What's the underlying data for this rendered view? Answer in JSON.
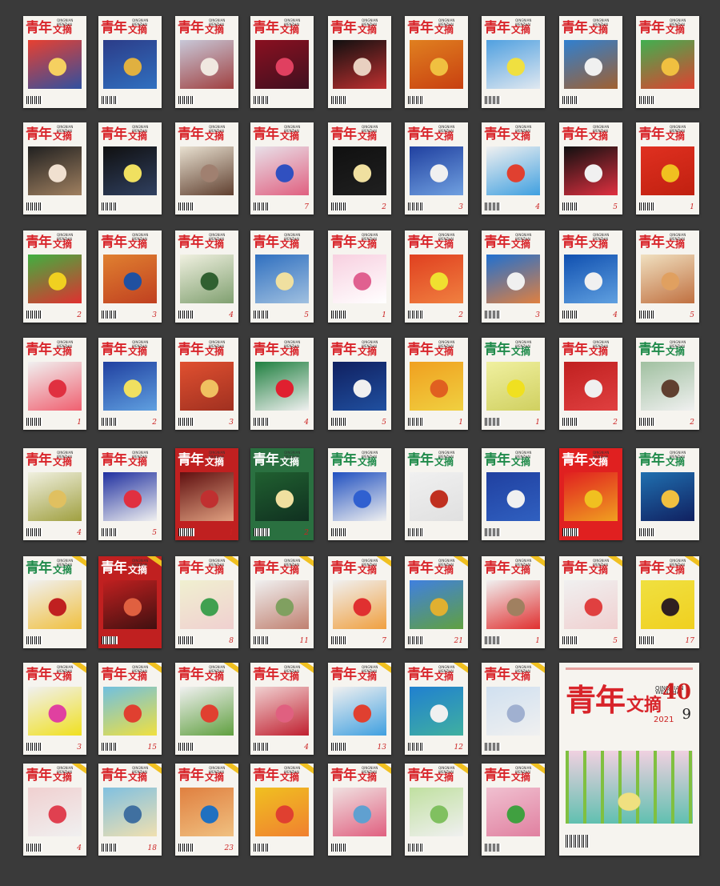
{
  "title_main": "青年",
  "title_sub": "文摘",
  "pinyin": "QINGNIAN WENZHAI",
  "colors": {
    "background": "#3a3a3a",
    "masthead_red": "#d8242a",
    "masthead_green": "#1f8a4a"
  },
  "covers": [
    {
      "label": "",
      "mast": "red",
      "art": [
        "#e84030",
        "#f5d060",
        "#3050a0"
      ]
    },
    {
      "label": "",
      "mast": "red",
      "art": [
        "#2c3c88",
        "#e0b040",
        "#3070c0"
      ]
    },
    {
      "label": "",
      "mast": "red",
      "art": [
        "#c8c8d8",
        "#f0e8e0",
        "#a04040"
      ]
    },
    {
      "label": "",
      "mast": "red",
      "art": [
        "#8a1020",
        "#e04060",
        "#401020"
      ]
    },
    {
      "label": "",
      "mast": "red",
      "art": [
        "#101010",
        "#e8d0c0",
        "#c03030"
      ]
    },
    {
      "label": "",
      "mast": "red",
      "art": [
        "#e08020",
        "#f0c040",
        "#c84010"
      ]
    },
    {
      "label": "",
      "mast": "red",
      "art": [
        "#50a0e0",
        "#f0e040",
        "#e0e8f0"
      ]
    },
    {
      "label": "",
      "mast": "red",
      "art": [
        "#3080d0",
        "#f0f0f0",
        "#a06030"
      ]
    },
    {
      "label": "",
      "mast": "red",
      "art": [
        "#40b050",
        "#f0c040",
        "#e04030"
      ]
    },
    {
      "label": "",
      "mast": "red",
      "art": [
        "#202020",
        "#f0e0d0",
        "#a08060"
      ]
    },
    {
      "label": "",
      "mast": "red",
      "art": [
        "#101010",
        "#f0e060",
        "#304060"
      ]
    },
    {
      "label": "",
      "mast": "red",
      "art": [
        "#e8e0d0",
        "#a08070",
        "#604030"
      ]
    },
    {
      "label": "7",
      "mast": "red",
      "art": [
        "#e8e0e8",
        "#3050c0",
        "#e06080"
      ]
    },
    {
      "label": "2",
      "mast": "red",
      "art": [
        "#101010",
        "#f0e0a0",
        "#202020"
      ]
    },
    {
      "label": "3",
      "mast": "red",
      "art": [
        "#2040a0",
        "#f0f0f0",
        "#70a0e0"
      ]
    },
    {
      "label": "4",
      "mast": "red",
      "art": [
        "#f0f0f0",
        "#e04030",
        "#40a0e0"
      ]
    },
    {
      "label": "5",
      "mast": "red",
      "art": [
        "#101010",
        "#f0f0f0",
        "#e03040"
      ]
    },
    {
      "label": "1",
      "mast": "red",
      "art": [
        "#e03020",
        "#f0c020",
        "#c02010"
      ]
    },
    {
      "label": "2",
      "mast": "red",
      "art": [
        "#40b040",
        "#f0d020",
        "#e03030"
      ]
    },
    {
      "label": "3",
      "mast": "red",
      "art": [
        "#e08030",
        "#2050a0",
        "#c04020"
      ]
    },
    {
      "label": "4",
      "mast": "red",
      "art": [
        "#f0f0e0",
        "#306030",
        "#80a070"
      ]
    },
    {
      "label": "5",
      "mast": "red",
      "art": [
        "#3070c0",
        "#f0e0a0",
        "#a0c0e0"
      ]
    },
    {
      "label": "1",
      "mast": "red",
      "art": [
        "#f8d0e0",
        "#e06090",
        "#ffffff"
      ]
    },
    {
      "label": "2",
      "mast": "red",
      "art": [
        "#e04020",
        "#f0e030",
        "#f08040"
      ]
    },
    {
      "label": "3",
      "mast": "red",
      "art": [
        "#2070d0",
        "#f0f0f0",
        "#e08040"
      ]
    },
    {
      "label": "4",
      "mast": "red",
      "art": [
        "#1050b0",
        "#f0f0f0",
        "#60a0e0"
      ]
    },
    {
      "label": "5",
      "mast": "red",
      "art": [
        "#f0e0c0",
        "#e0a060",
        "#c07040"
      ]
    },
    {
      "label": "1",
      "mast": "red",
      "art": [
        "#f0f0f0",
        "#e03040",
        "#f06070"
      ]
    },
    {
      "label": "2",
      "mast": "red",
      "art": [
        "#2040a0",
        "#f0e060",
        "#60a0e0"
      ]
    },
    {
      "label": "3",
      "mast": "red",
      "art": [
        "#e05030",
        "#f0c060",
        "#a03020"
      ]
    },
    {
      "label": "4",
      "mast": "red",
      "art": [
        "#208040",
        "#e02030",
        "#f0f0f0"
      ]
    },
    {
      "label": "5",
      "mast": "red",
      "art": [
        "#102060",
        "#f0f0f0",
        "#2050a0"
      ]
    },
    {
      "label": "1",
      "mast": "red",
      "art": [
        "#f0a020",
        "#e06020",
        "#f0d040"
      ]
    },
    {
      "label": "1",
      "mast": "green",
      "art": [
        "#f0f0a0",
        "#f0e020",
        "#d0d060"
      ]
    },
    {
      "label": "2",
      "mast": "red",
      "art": [
        "#c02020",
        "#f0f0f0",
        "#e04040"
      ]
    },
    {
      "label": "2",
      "mast": "green",
      "art": [
        "#a0c0a0",
        "#604030",
        "#f0f0f0"
      ]
    },
    {
      "label": "4",
      "mast": "red",
      "art": [
        "#f0f0e0",
        "#e0c060",
        "#a0a040"
      ]
    },
    {
      "label": "5",
      "mast": "red",
      "art": [
        "#2030a0",
        "#e03040",
        "#f0f0f0"
      ]
    },
    {
      "label": "1",
      "mast": "red",
      "art": [
        "#601010",
        "#c03030",
        "#e0a080"
      ],
      "full": "#c02020"
    },
    {
      "label": "2",
      "mast": "red",
      "art": [
        "#206030",
        "#f0e0a0",
        "#103020"
      ],
      "full": "#2a7040"
    },
    {
      "label": "",
      "mast": "green",
      "art": [
        "#2050c0",
        "#3060d0",
        "#f0f0f0"
      ]
    },
    {
      "label": "",
      "mast": "green",
      "art": [
        "#f0f0f0",
        "#c03020",
        "#e0e0e0"
      ]
    },
    {
      "label": "",
      "mast": "green",
      "art": [
        "#2040a0",
        "#f0f0f0",
        "#3060c0"
      ]
    },
    {
      "label": "",
      "mast": "red",
      "art": [
        "#e02020",
        "#f0c020",
        "#f0a020"
      ],
      "full": "#e02020"
    },
    {
      "label": "",
      "mast": "green",
      "art": [
        "#2070b0",
        "#f0c040",
        "#102060"
      ]
    },
    {
      "label": "",
      "mast": "green",
      "art": [
        "#f0f0f0",
        "#c02020",
        "#f0c040"
      ]
    },
    {
      "label": "",
      "mast": "red",
      "art": [
        "#c02020",
        "#e06040",
        "#401010"
      ],
      "full": "#c02020"
    },
    {
      "label": "8",
      "mast": "red",
      "art": [
        "#f0f0d0",
        "#40a050",
        "#f0d0d0"
      ]
    },
    {
      "label": "11",
      "mast": "red",
      "art": [
        "#f0f0f0",
        "#80a060",
        "#c08070"
      ]
    },
    {
      "label": "7",
      "mast": "red",
      "art": [
        "#f0f0f0",
        "#e03030",
        "#f0a040"
      ]
    },
    {
      "label": "21",
      "mast": "red",
      "art": [
        "#4080e0",
        "#e0b030",
        "#60a040"
      ]
    },
    {
      "label": "1",
      "mast": "red",
      "art": [
        "#f0f0f0",
        "#a08060",
        "#e03030"
      ]
    },
    {
      "label": "5",
      "mast": "red",
      "art": [
        "#f0f0f0",
        "#e04040",
        "#f0d0d0"
      ]
    },
    {
      "label": "17",
      "mast": "red",
      "art": [
        "#f0e040",
        "#302020",
        "#f0d020"
      ]
    },
    {
      "label": "3",
      "mast": "red",
      "art": [
        "#f0f0f0",
        "#e040a0",
        "#f0e020"
      ]
    },
    {
      "label": "15",
      "mast": "red",
      "art": [
        "#70c0e0",
        "#e04030",
        "#f0e040"
      ]
    },
    {
      "label": "",
      "mast": "red",
      "art": [
        "#f0f0f0",
        "#e04030",
        "#60a040"
      ]
    },
    {
      "label": "4",
      "mast": "red",
      "art": [
        "#f0d0d0",
        "#e06080",
        "#c02030"
      ]
    },
    {
      "label": "13",
      "mast": "red",
      "art": [
        "#f0f0f0",
        "#e04030",
        "#40a0e0"
      ]
    },
    {
      "label": "12",
      "mast": "red",
      "art": [
        "#2080d0",
        "#f0f0f0",
        "#40b0a0"
      ]
    },
    {
      "label": "",
      "mast": "red",
      "art": [
        "#d0e0f0",
        "#a0b0d0",
        "#f0f0f0"
      ]
    },
    {
      "label": "4",
      "mast": "red",
      "art": [
        "#f0d0d0",
        "#e04050",
        "#f0f0f0"
      ]
    },
    {
      "label": "18",
      "mast": "red",
      "art": [
        "#80c0e0",
        "#4070a0",
        "#f0e0b0"
      ]
    },
    {
      "label": "23",
      "mast": "red",
      "art": [
        "#e08040",
        "#2070c0",
        "#f0c080"
      ]
    },
    {
      "label": "",
      "mast": "red",
      "art": [
        "#f0c020",
        "#e04030",
        "#f08030"
      ]
    },
    {
      "label": "",
      "mast": "red",
      "art": [
        "#f0e0e0",
        "#60a0d0",
        "#e06080"
      ]
    },
    {
      "label": "",
      "mast": "red",
      "art": [
        "#c0e0a0",
        "#80c060",
        "#f0f0f0"
      ]
    },
    {
      "label": "",
      "mast": "red",
      "art": [
        "#f0c0d0",
        "#40a040",
        "#e080a0"
      ]
    }
  ],
  "featured": {
    "number": "9",
    "year": "2021",
    "badge": "40",
    "art": [
      "#60c0b0",
      "#f0e080",
      "#80c040",
      "#f0d0e0"
    ]
  }
}
